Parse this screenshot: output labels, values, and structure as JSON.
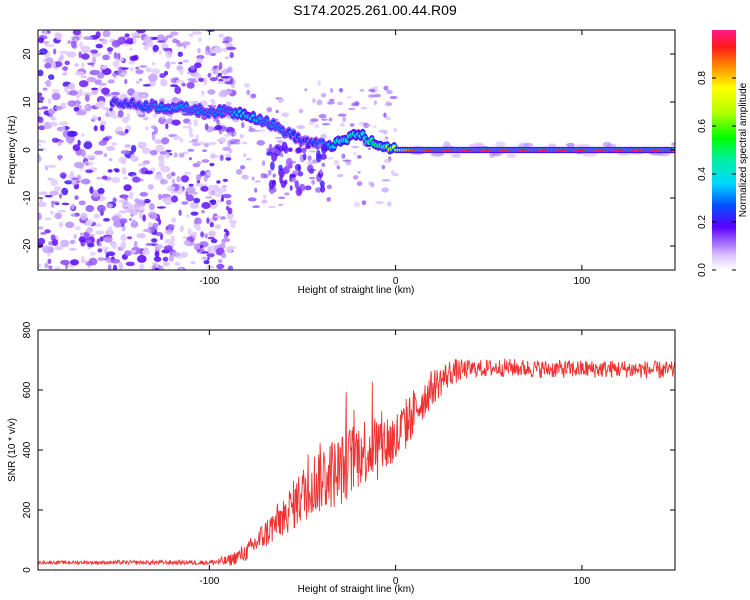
{
  "title": "S174.2025.261.00.44.R09",
  "chart_data": [
    {
      "type": "heatmap",
      "name": "spectrogram",
      "xlabel": "Height of straight line (km)",
      "ylabel": "Frequency (Hz)",
      "xlim": [
        -192,
        150
      ],
      "ylim": [
        -25,
        25
      ],
      "xticks": [
        -100,
        0,
        100
      ],
      "yticks": [
        -20,
        -10,
        0,
        10,
        20
      ],
      "ridge": {
        "x": [
          -150,
          -140,
          -130,
          -120,
          -110,
          -100,
          -90,
          -80,
          -70,
          -65,
          -60,
          -55,
          -50,
          -45,
          -40,
          -35,
          -30,
          -25,
          -20,
          -15,
          -10,
          -5,
          0,
          10,
          30,
          60,
          100,
          150
        ],
        "freq": [
          10,
          9.5,
          9,
          9,
          8.5,
          8,
          8,
          7.5,
          6,
          5,
          4,
          3,
          2,
          1.5,
          1,
          1,
          1.5,
          2.5,
          3.5,
          2,
          1,
          0.5,
          0,
          0,
          0,
          0,
          0,
          0
        ],
        "amplitude": [
          0.25,
          0.25,
          0.3,
          0.35,
          0.3,
          0.3,
          0.3,
          0.4,
          0.3,
          0.3,
          0.3,
          0.25,
          0.25,
          0.25,
          0.3,
          0.35,
          0.45,
          0.45,
          0.4,
          0.45,
          0.55,
          0.6,
          0.75,
          0.9,
          0.95,
          0.95,
          0.95,
          0.95
        ]
      },
      "colorbar": {
        "label": "Normalized spectral amplitude",
        "ticks": [
          0.0,
          0.2,
          0.4,
          0.6,
          0.8
        ],
        "tick_labels": [
          "0.0",
          "0.2",
          "0.4",
          "0.6",
          "0.8"
        ],
        "range": [
          0,
          1
        ]
      }
    },
    {
      "type": "line",
      "name": "snr",
      "xlabel": "Height of straight line (km)",
      "ylabel": "SNR (10 * v/v)",
      "xlim": [
        -192,
        150
      ],
      "ylim": [
        0,
        800
      ],
      "xticks": [
        -100,
        0,
        100
      ],
      "yticks": [
        0,
        200,
        400,
        600,
        800
      ],
      "color": "#ee3333",
      "envelope": {
        "x": [
          -192,
          -160,
          -120,
          -100,
          -90,
          -80,
          -70,
          -60,
          -50,
          -40,
          -30,
          -20,
          -10,
          0,
          10,
          20,
          30,
          40,
          60,
          80,
          100,
          120,
          150
        ],
        "y": [
          25,
          25,
          25,
          25,
          30,
          60,
          120,
          180,
          250,
          310,
          330,
          390,
          420,
          430,
          530,
          610,
          660,
          670,
          675,
          670,
          670,
          670,
          665
        ]
      },
      "noise_amplitude": {
        "x": [
          -192,
          -100,
          -80,
          -60,
          -40,
          -20,
          0,
          20,
          40,
          150
        ],
        "y": [
          5,
          8,
          30,
          70,
          120,
          120,
          100,
          60,
          30,
          30
        ]
      }
    }
  ]
}
